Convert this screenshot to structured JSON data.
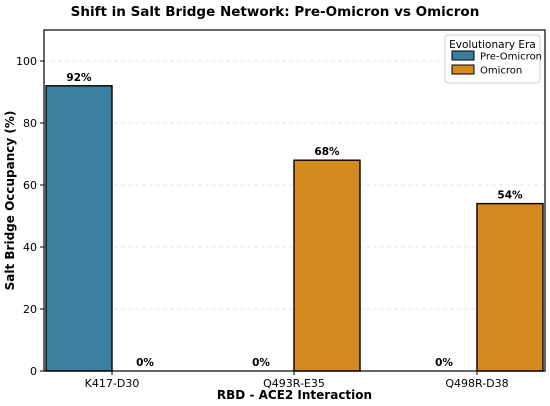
{
  "chart_data": {
    "type": "bar",
    "title": "Shift in Salt Bridge Network: Pre-Omicron vs Omicron",
    "xlabel": "RBD - ACE2 Interaction",
    "ylabel": "Salt Bridge Occupancy (%)",
    "categories": [
      "K417-D30",
      "Q493R-E35",
      "Q498R-D38"
    ],
    "series": [
      {
        "name": "Pre-Omicron",
        "color": "#3b7fa0",
        "values": [
          92,
          0,
          0
        ],
        "labels": [
          "92%",
          "0%",
          "0%"
        ]
      },
      {
        "name": "Omicron",
        "color": "#d58a1f",
        "values": [
          0,
          68,
          54
        ],
        "labels": [
          "0%",
          "68%",
          "54%"
        ]
      }
    ],
    "ylim": [
      0,
      110
    ],
    "yticks": [
      0,
      20,
      40,
      60,
      80,
      100
    ],
    "grid": "horizontal dashed",
    "legend": {
      "title": "Evolutionary Era",
      "placement": "top-right"
    }
  }
}
